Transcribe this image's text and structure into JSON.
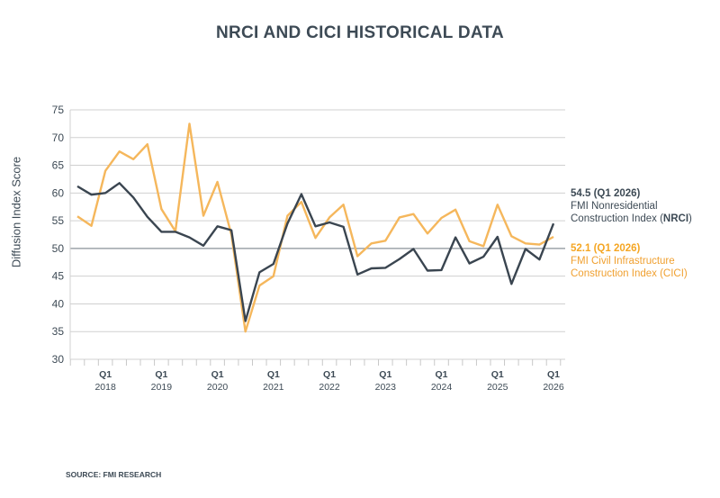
{
  "chart_data": {
    "type": "line",
    "title": "NRCI AND CICI HISTORICAL DATA",
    "ylabel": "Diffusion Index Score",
    "xlabel": "",
    "ylim": [
      30,
      75
    ],
    "yticks": [
      30,
      35,
      40,
      45,
      50,
      55,
      60,
      65,
      70,
      75
    ],
    "grid": true,
    "reference_line": 50,
    "x": [
      "Q3 2017",
      "Q4 2017",
      "Q1 2018",
      "Q2 2018",
      "Q3 2018",
      "Q4 2018",
      "Q1 2019",
      "Q2 2019",
      "Q3 2019",
      "Q4 2019",
      "Q1 2020",
      "Q2 2020",
      "Q3 2020",
      "Q4 2020",
      "Q1 2021",
      "Q2 2021",
      "Q3 2021",
      "Q4 2021",
      "Q1 2022",
      "Q2 2022",
      "Q3 2022",
      "Q4 2022",
      "Q1 2023",
      "Q2 2023",
      "Q3 2023",
      "Q4 2023",
      "Q1 2024",
      "Q2 2024",
      "Q3 2024",
      "Q4 2024",
      "Q1 2025",
      "Q2 2025",
      "Q3 2025",
      "Q4 2025",
      "Q1 2026"
    ],
    "xtick_labels": [
      {
        "q": "Q1",
        "year": "2018",
        "index": 2
      },
      {
        "q": "Q1",
        "year": "2019",
        "index": 6
      },
      {
        "q": "Q1",
        "year": "2020",
        "index": 10
      },
      {
        "q": "Q1",
        "year": "2021",
        "index": 14
      },
      {
        "q": "Q1",
        "year": "2022",
        "index": 18
      },
      {
        "q": "Q1",
        "year": "2023",
        "index": 22
      },
      {
        "q": "Q1",
        "year": "2024",
        "index": 26
      },
      {
        "q": "Q1",
        "year": "2025",
        "index": 30
      },
      {
        "q": "Q1",
        "year": "2026",
        "index": 34
      }
    ],
    "series": [
      {
        "name": "FMI Nonresidential Construction Index (NRCI)",
        "color": "#3a4550",
        "values": [
          61.2,
          59.7,
          60.0,
          61.8,
          59.2,
          55.7,
          53.0,
          53.0,
          52.0,
          50.5,
          54.0,
          53.3,
          36.9,
          45.7,
          47.2,
          54.5,
          59.8,
          54.0,
          54.7,
          53.9,
          45.3,
          46.4,
          46.5,
          48.1,
          49.9,
          46.0,
          46.1,
          52.0,
          47.3,
          48.5,
          52.1,
          43.6,
          49.9,
          48.0,
          54.5
        ]
      },
      {
        "name": "FMI Civil Infrastructure Construction Index (CICI)",
        "color": "#f5b75c",
        "values": [
          55.8,
          54.1,
          64.0,
          67.5,
          66.1,
          68.8,
          57.1,
          53.1,
          72.5,
          55.9,
          62.0,
          52.5,
          35.0,
          43.3,
          45.0,
          55.9,
          58.4,
          51.9,
          55.6,
          57.9,
          48.6,
          50.9,
          51.4,
          55.6,
          56.2,
          52.7,
          55.5,
          57.0,
          51.3,
          50.4,
          57.9,
          52.2,
          50.9,
          50.7,
          52.1
        ]
      }
    ],
    "legend_placement": "right",
    "annotations": [
      {
        "value": "54.5 (Q1 2026)",
        "line1": "FMI Nonresidential",
        "line2a": "Construction Index (",
        "line2b": "NRCI",
        "line2c": ")"
      },
      {
        "value": "52.1 (Q1 2026)",
        "line1": "FMI Civil Infrastructure",
        "line2": "Construction Index (CICI)"
      }
    ]
  },
  "source": "SOURCE: FMI RESEARCH"
}
